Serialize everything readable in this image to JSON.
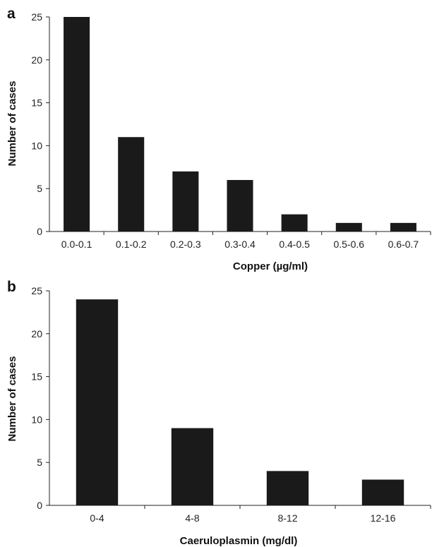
{
  "chart_data": [
    {
      "panel": "a",
      "type": "bar",
      "categories": [
        "0.0-0.1",
        "0.1-0.2",
        "0.2-0.3",
        "0.3-0.4",
        "0.4-0.5",
        "0.5-0.6",
        "0.6-0.7"
      ],
      "values": [
        25,
        11,
        7,
        6,
        2,
        1,
        1
      ],
      "xlabel": "Copper (µg/ml)",
      "ylabel": "Number of cases",
      "ylim": [
        0,
        25
      ],
      "yticks": [
        "0",
        "5",
        "10",
        "15",
        "20",
        "25"
      ],
      "grid": false,
      "legend": "none",
      "bar_color": "#1a1a1a"
    },
    {
      "panel": "b",
      "type": "bar",
      "categories": [
        "0-4",
        "4-8",
        "8-12",
        "12-16"
      ],
      "values": [
        24,
        9,
        4,
        3
      ],
      "xlabel": "Caeruloplasmin (mg/dl)",
      "ylabel": "Number of cases",
      "ylim": [
        0,
        25
      ],
      "yticks": [
        "0",
        "5",
        "10",
        "15",
        "20",
        "25"
      ],
      "grid": false,
      "legend": "none",
      "bar_color": "#1a1a1a"
    }
  ]
}
